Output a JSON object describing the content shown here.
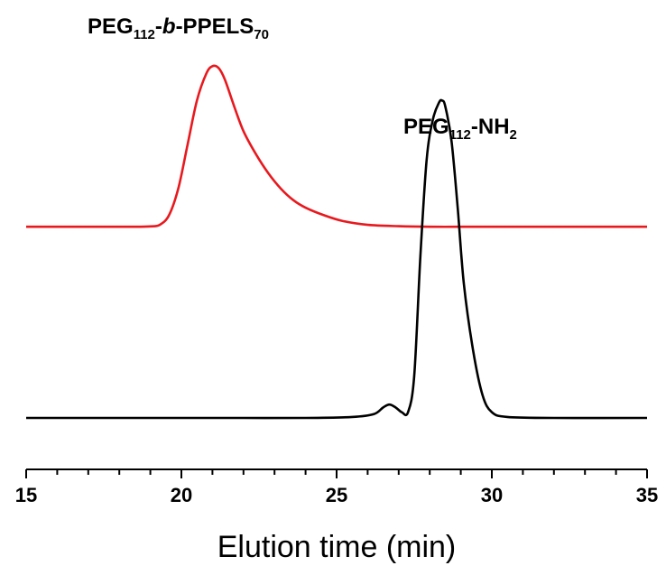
{
  "chart_data": {
    "type": "line",
    "title": "",
    "xlabel": "Elution time (min)",
    "ylabel": "",
    "xlim": [
      15,
      35
    ],
    "ylim": [
      0,
      1.95
    ],
    "x_ticks": [
      15,
      20,
      25,
      30,
      35
    ],
    "x_tick_labels": [
      "15",
      "20",
      "25",
      "30",
      "35"
    ],
    "y_axis_shown": false,
    "grid": false,
    "legend": "none",
    "series": [
      {
        "color": "#e8191e",
        "x": [
          15.0,
          17.0,
          18.5,
          19.0,
          19.3,
          19.6,
          19.9,
          20.2,
          20.5,
          20.8,
          21.0,
          21.2,
          21.4,
          21.7,
          22.0,
          22.4,
          22.8,
          23.2,
          23.6,
          24.0,
          24.6,
          25.2,
          26.0,
          27.0,
          28.0,
          29.0,
          30.0,
          32.0,
          35.0
        ],
        "y": [
          1.0,
          1.0,
          1.0,
          1.002,
          1.01,
          1.06,
          1.2,
          1.43,
          1.66,
          1.8,
          1.84,
          1.83,
          1.77,
          1.63,
          1.5,
          1.38,
          1.28,
          1.2,
          1.14,
          1.1,
          1.06,
          1.03,
          1.01,
          1.003,
          1.0,
          1.0,
          1.0,
          1.0,
          1.0
        ]
      },
      {
        "color": "#000000",
        "x": [
          15.0,
          18.0,
          20.0,
          22.0,
          24.0,
          25.5,
          26.2,
          26.5,
          26.7,
          26.9,
          27.1,
          27.3,
          27.5,
          27.7,
          27.9,
          28.1,
          28.3,
          28.4,
          28.5,
          28.7,
          28.9,
          29.1,
          29.4,
          29.7,
          30.0,
          30.5,
          32.0,
          35.0
        ],
        "y": [
          0.0,
          0.0,
          0.0,
          0.0,
          0.0,
          0.005,
          0.02,
          0.055,
          0.07,
          0.055,
          0.03,
          0.03,
          0.22,
          0.85,
          1.35,
          1.56,
          1.65,
          1.66,
          1.63,
          1.45,
          1.1,
          0.7,
          0.35,
          0.12,
          0.03,
          0.005,
          0.0,
          0.0
        ]
      }
    ],
    "annotations": [
      {
        "parts": [
          {
            "text": "PEG",
            "style": "normal"
          },
          {
            "text": "112",
            "style": "sub"
          },
          {
            "text": "-",
            "style": "normal"
          },
          {
            "text": "b",
            "style": "italic"
          },
          {
            "text": "-PPELS",
            "style": "normal"
          },
          {
            "text": "70",
            "style": "sub"
          }
        ]
      },
      {
        "parts": [
          {
            "text": "PEG",
            "style": "normal"
          },
          {
            "text": "112",
            "style": "sub"
          },
          {
            "text": "-NH",
            "style": "normal"
          },
          {
            "text": "2",
            "style": "sub"
          }
        ]
      }
    ]
  }
}
